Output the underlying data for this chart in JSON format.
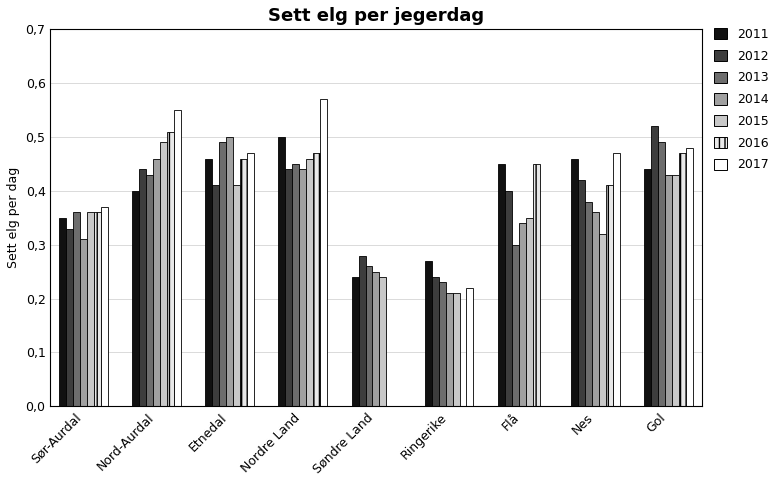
{
  "title": "Sett elg per jegerdag",
  "ylabel": "Sett elg per dag",
  "categories": [
    "Sør-Aurdal",
    "Nord-Aurdal",
    "Etnedal",
    "Nordre Land",
    "Søndre Land",
    "Ringerike",
    "Flå",
    "Nes",
    "Gol"
  ],
  "years": [
    "2011",
    "2012",
    "2013",
    "2014",
    "2015",
    "2016",
    "2017"
  ],
  "values": {
    "Sør-Aurdal": [
      0.35,
      0.33,
      0.36,
      0.31,
      0.36,
      0.36,
      0.37
    ],
    "Nord-Aurdal": [
      0.4,
      0.44,
      0.43,
      0.46,
      0.49,
      0.51,
      0.55
    ],
    "Etnedal": [
      0.46,
      0.41,
      0.49,
      0.5,
      0.41,
      0.46,
      0.47
    ],
    "Nordre Land": [
      0.5,
      0.44,
      0.45,
      0.44,
      0.46,
      0.47,
      0.57
    ],
    "Søndre Land": [
      0.24,
      0.28,
      0.26,
      0.25,
      0.24,
      0.0,
      0.0
    ],
    "Ringerike": [
      0.27,
      0.24,
      0.23,
      0.21,
      0.21,
      0.0,
      0.22
    ],
    "Flå": [
      0.45,
      0.4,
      0.3,
      0.34,
      0.35,
      0.45,
      0.0
    ],
    "Nes": [
      0.46,
      0.42,
      0.38,
      0.36,
      0.32,
      0.41,
      0.47
    ],
    "Gol": [
      0.44,
      0.52,
      0.49,
      0.43,
      0.43,
      0.47,
      0.48
    ]
  },
  "bar_colors": [
    "#111111",
    "#3d3d3d",
    "#6d6d6d",
    "#a0a0a0",
    "#c8c8c8",
    "#e8e8e8",
    "#ffffff"
  ],
  "bar_hatches": [
    null,
    null,
    null,
    null,
    null,
    "|||",
    null
  ],
  "bar_edgecolor": "#000000",
  "ylim": [
    0,
    0.7
  ],
  "yticks": [
    0,
    0.1,
    0.2,
    0.3,
    0.4,
    0.5,
    0.6,
    0.7
  ],
  "title_fontsize": 13,
  "ylabel_fontsize": 9,
  "tick_fontsize": 9,
  "legend_fontsize": 9,
  "bar_width": 0.095,
  "figwidth": 7.75,
  "figheight": 4.83
}
